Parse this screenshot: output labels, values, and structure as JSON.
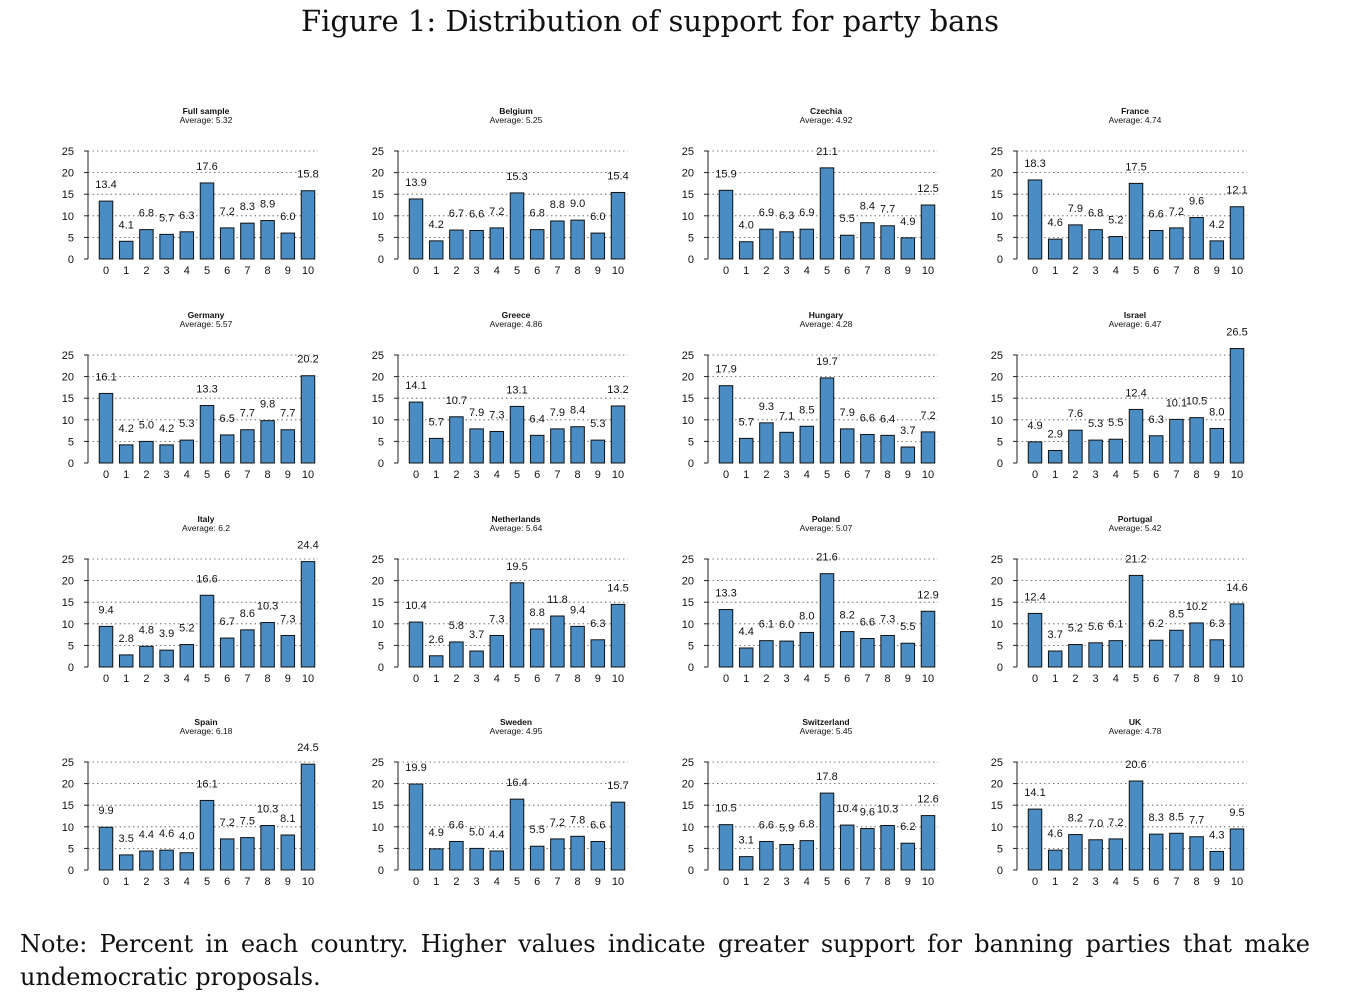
{
  "figure_title": "Figure 1: Distribution of support for party bans",
  "note": "Note: Percent in each country. Higher values indicate greater support for banning parties that make undemocratic proposals.",
  "chart_data": [
    {
      "type": "bar",
      "title": "Full sample",
      "subtitle": "Average: 5.32",
      "categories": [
        "0",
        "1",
        "2",
        "3",
        "4",
        "5",
        "6",
        "7",
        "8",
        "9",
        "10"
      ],
      "values": [
        13.4,
        4.1,
        6.8,
        5.7,
        6.3,
        17.6,
        7.2,
        8.3,
        8.9,
        6.0,
        15.8
      ],
      "yticks": [
        "0",
        "5",
        "10",
        "15",
        "20",
        "25"
      ],
      "ylim": [
        0,
        25
      ],
      "grid": true,
      "color": "#4a8cc4"
    },
    {
      "type": "bar",
      "title": "Belgium",
      "subtitle": "Average: 5.25",
      "categories": [
        "0",
        "1",
        "2",
        "3",
        "4",
        "5",
        "6",
        "7",
        "8",
        "9",
        "10"
      ],
      "values": [
        13.9,
        4.2,
        6.7,
        6.6,
        7.2,
        15.3,
        6.8,
        8.8,
        9.0,
        6.0,
        15.4
      ],
      "yticks": [
        "0",
        "5",
        "10",
        "15",
        "20",
        "25"
      ],
      "ylim": [
        0,
        25
      ],
      "grid": true,
      "color": "#4a8cc4"
    },
    {
      "type": "bar",
      "title": "Czechia",
      "subtitle": "Average: 4.92",
      "categories": [
        "0",
        "1",
        "2",
        "3",
        "4",
        "5",
        "6",
        "7",
        "8",
        "9",
        "10"
      ],
      "values": [
        15.9,
        4.0,
        6.9,
        6.3,
        6.9,
        21.1,
        5.5,
        8.4,
        7.7,
        4.9,
        12.5
      ],
      "yticks": [
        "0",
        "5",
        "10",
        "15",
        "20",
        "25"
      ],
      "ylim": [
        0,
        25
      ],
      "grid": true,
      "color": "#4a8cc4"
    },
    {
      "type": "bar",
      "title": "France",
      "subtitle": "Average: 4.74",
      "categories": [
        "0",
        "1",
        "2",
        "3",
        "4",
        "5",
        "6",
        "7",
        "8",
        "9",
        "10"
      ],
      "values": [
        18.3,
        4.6,
        7.9,
        6.8,
        5.2,
        17.5,
        6.6,
        7.2,
        9.6,
        4.2,
        12.1
      ],
      "yticks": [
        "0",
        "5",
        "10",
        "15",
        "20",
        "25"
      ],
      "ylim": [
        0,
        25
      ],
      "grid": true,
      "color": "#4a8cc4"
    },
    {
      "type": "bar",
      "title": "Germany",
      "subtitle": "Average: 5.57",
      "categories": [
        "0",
        "1",
        "2",
        "3",
        "4",
        "5",
        "6",
        "7",
        "8",
        "9",
        "10"
      ],
      "values": [
        16.1,
        4.2,
        5.0,
        4.2,
        5.3,
        13.3,
        6.5,
        7.7,
        9.8,
        7.7,
        20.2
      ],
      "yticks": [
        "0",
        "5",
        "10",
        "15",
        "20",
        "25"
      ],
      "ylim": [
        0,
        25
      ],
      "grid": true,
      "color": "#4a8cc4"
    },
    {
      "type": "bar",
      "title": "Greece",
      "subtitle": "Average: 4.86",
      "categories": [
        "0",
        "1",
        "2",
        "3",
        "4",
        "5",
        "6",
        "7",
        "8",
        "9",
        "10"
      ],
      "values": [
        14.1,
        5.7,
        10.7,
        7.9,
        7.3,
        13.1,
        6.4,
        7.9,
        8.4,
        5.3,
        13.2
      ],
      "yticks": [
        "0",
        "5",
        "10",
        "15",
        "20",
        "25"
      ],
      "ylim": [
        0,
        25
      ],
      "grid": true,
      "color": "#4a8cc4"
    },
    {
      "type": "bar",
      "title": "Hungary",
      "subtitle": "Average: 4.28",
      "categories": [
        "0",
        "1",
        "2",
        "3",
        "4",
        "5",
        "6",
        "7",
        "8",
        "9",
        "10"
      ],
      "values": [
        17.9,
        5.7,
        9.3,
        7.1,
        8.5,
        19.7,
        7.9,
        6.6,
        6.4,
        3.7,
        7.2
      ],
      "yticks": [
        "0",
        "5",
        "10",
        "15",
        "20",
        "25"
      ],
      "ylim": [
        0,
        25
      ],
      "grid": true,
      "color": "#4a8cc4"
    },
    {
      "type": "bar",
      "title": "Israel",
      "subtitle": "Average: 6.47",
      "categories": [
        "0",
        "1",
        "2",
        "3",
        "4",
        "5",
        "6",
        "7",
        "8",
        "9",
        "10"
      ],
      "values": [
        4.9,
        2.9,
        7.6,
        5.3,
        5.5,
        12.4,
        6.3,
        10.1,
        10.5,
        8.0,
        26.5
      ],
      "yticks": [
        "0",
        "5",
        "10",
        "15",
        "20",
        "25"
      ],
      "ylim": [
        0,
        25
      ],
      "grid": true,
      "color": "#4a8cc4"
    },
    {
      "type": "bar",
      "title": "Italy",
      "subtitle": "Average: 6.2",
      "categories": [
        "0",
        "1",
        "2",
        "3",
        "4",
        "5",
        "6",
        "7",
        "8",
        "9",
        "10"
      ],
      "values": [
        9.4,
        2.8,
        4.8,
        3.9,
        5.2,
        16.6,
        6.7,
        8.6,
        10.3,
        7.3,
        24.4
      ],
      "yticks": [
        "0",
        "5",
        "10",
        "15",
        "20",
        "25"
      ],
      "ylim": [
        0,
        25
      ],
      "grid": true,
      "color": "#4a8cc4"
    },
    {
      "type": "bar",
      "title": "Netherlands",
      "subtitle": "Average: 5.64",
      "categories": [
        "0",
        "1",
        "2",
        "3",
        "4",
        "5",
        "6",
        "7",
        "8",
        "9",
        "10"
      ],
      "values": [
        10.4,
        2.6,
        5.8,
        3.7,
        7.3,
        19.5,
        8.8,
        11.8,
        9.4,
        6.3,
        14.5
      ],
      "yticks": [
        "0",
        "5",
        "10",
        "15",
        "20",
        "25"
      ],
      "ylim": [
        0,
        25
      ],
      "grid": true,
      "color": "#4a8cc4"
    },
    {
      "type": "bar",
      "title": "Poland",
      "subtitle": "Average: 5.07",
      "categories": [
        "0",
        "1",
        "2",
        "3",
        "4",
        "5",
        "6",
        "7",
        "8",
        "9",
        "10"
      ],
      "values": [
        13.3,
        4.4,
        6.1,
        6.0,
        8.0,
        21.6,
        8.2,
        6.6,
        7.3,
        5.5,
        12.9
      ],
      "yticks": [
        "0",
        "5",
        "10",
        "15",
        "20",
        "25"
      ],
      "ylim": [
        0,
        25
      ],
      "grid": true,
      "color": "#4a8cc4"
    },
    {
      "type": "bar",
      "title": "Portugal",
      "subtitle": "Average: 5.42",
      "categories": [
        "0",
        "1",
        "2",
        "3",
        "4",
        "5",
        "6",
        "7",
        "8",
        "9",
        "10"
      ],
      "values": [
        12.4,
        3.7,
        5.2,
        5.6,
        6.1,
        21.2,
        6.2,
        8.5,
        10.2,
        6.3,
        14.6
      ],
      "yticks": [
        "0",
        "5",
        "10",
        "15",
        "20",
        "25"
      ],
      "ylim": [
        0,
        25
      ],
      "grid": true,
      "color": "#4a8cc4"
    },
    {
      "type": "bar",
      "title": "Spain",
      "subtitle": "Average: 6.18",
      "categories": [
        "0",
        "1",
        "2",
        "3",
        "4",
        "5",
        "6",
        "7",
        "8",
        "9",
        "10"
      ],
      "values": [
        9.9,
        3.5,
        4.4,
        4.6,
        4.0,
        16.1,
        7.2,
        7.5,
        10.3,
        8.1,
        24.5
      ],
      "yticks": [
        "0",
        "5",
        "10",
        "15",
        "20",
        "25"
      ],
      "ylim": [
        0,
        25
      ],
      "grid": true,
      "color": "#4a8cc4"
    },
    {
      "type": "bar",
      "title": "Sweden",
      "subtitle": "Average: 4.95",
      "categories": [
        "0",
        "1",
        "2",
        "3",
        "4",
        "5",
        "6",
        "7",
        "8",
        "9",
        "10"
      ],
      "values": [
        19.9,
        4.9,
        6.6,
        5.0,
        4.4,
        16.4,
        5.5,
        7.2,
        7.8,
        6.6,
        15.7
      ],
      "yticks": [
        "0",
        "5",
        "10",
        "15",
        "20",
        "25"
      ],
      "ylim": [
        0,
        25
      ],
      "grid": true,
      "color": "#4a8cc4"
    },
    {
      "type": "bar",
      "title": "Switzerland",
      "subtitle": "Average: 5.45",
      "categories": [
        "0",
        "1",
        "2",
        "3",
        "4",
        "5",
        "6",
        "7",
        "8",
        "9",
        "10"
      ],
      "values": [
        10.5,
        3.1,
        6.6,
        5.9,
        6.8,
        17.8,
        10.4,
        9.6,
        10.3,
        6.2,
        12.6
      ],
      "yticks": [
        "0",
        "5",
        "10",
        "15",
        "20",
        "25"
      ],
      "ylim": [
        0,
        25
      ],
      "grid": true,
      "color": "#4a8cc4"
    },
    {
      "type": "bar",
      "title": "UK",
      "subtitle": "Average: 4.78",
      "categories": [
        "0",
        "1",
        "2",
        "3",
        "4",
        "5",
        "6",
        "7",
        "8",
        "9",
        "10"
      ],
      "values": [
        14.1,
        4.6,
        8.2,
        7.0,
        7.2,
        20.6,
        8.3,
        8.5,
        7.7,
        4.3,
        9.5
      ],
      "yticks": [
        "0",
        "5",
        "10",
        "15",
        "20",
        "25"
      ],
      "ylim": [
        0,
        25
      ],
      "grid": true,
      "color": "#4a8cc4"
    }
  ]
}
